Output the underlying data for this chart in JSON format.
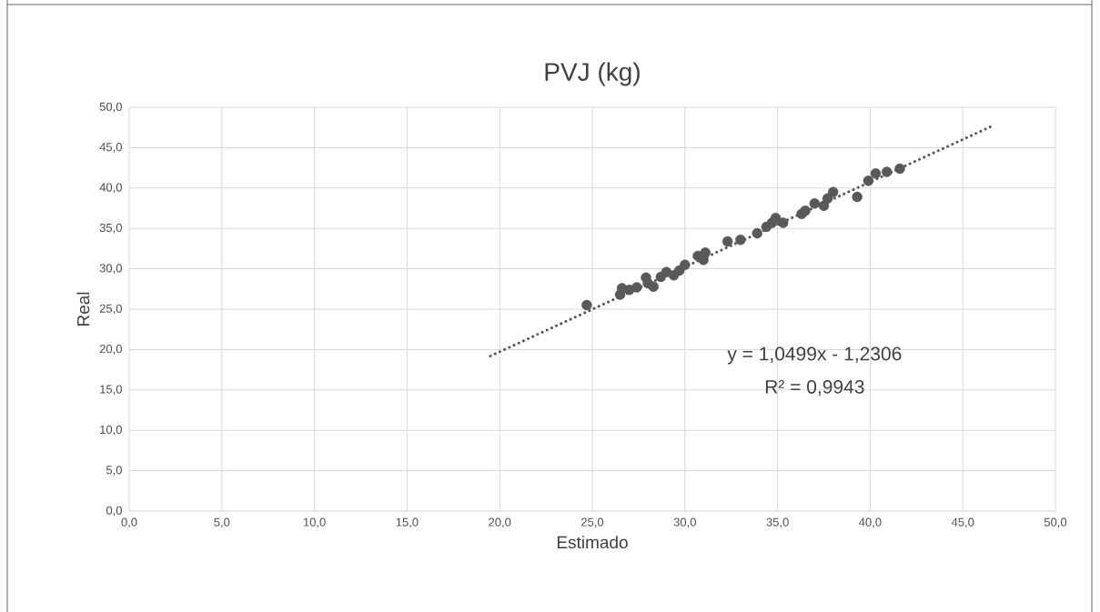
{
  "chart_data": {
    "type": "scatter",
    "title": "PVJ (kg)",
    "xlabel": "Estimado",
    "ylabel": "Real",
    "annotations": [
      "y = 1,0499x - 1,2306",
      "R² = 0,9943"
    ],
    "xlim": [
      0,
      50
    ],
    "ylim": [
      0,
      50
    ],
    "xticks": [
      {
        "value": 0,
        "label": "0,0"
      },
      {
        "value": 5,
        "label": "5,0"
      },
      {
        "value": 10,
        "label": "10,0"
      },
      {
        "value": 15,
        "label": "15,0"
      },
      {
        "value": 20,
        "label": "20,0"
      },
      {
        "value": 25,
        "label": "25,0"
      },
      {
        "value": 30,
        "label": "30,0"
      },
      {
        "value": 35,
        "label": "35,0"
      },
      {
        "value": 40,
        "label": "40,0"
      },
      {
        "value": 45,
        "label": "45,0"
      },
      {
        "value": 50,
        "label": "50,0"
      }
    ],
    "yticks": [
      {
        "value": 0,
        "label": "0,0"
      },
      {
        "value": 5,
        "label": "5,0"
      },
      {
        "value": 10,
        "label": "10,0"
      },
      {
        "value": 15,
        "label": "15,0"
      },
      {
        "value": 20,
        "label": "20,0"
      },
      {
        "value": 25,
        "label": "25,0"
      },
      {
        "value": 30,
        "label": "30,0"
      },
      {
        "value": 35,
        "label": "35,0"
      },
      {
        "value": 40,
        "label": "40,0"
      },
      {
        "value": 45,
        "label": "45,0"
      },
      {
        "value": 50,
        "label": "50,0"
      }
    ],
    "grid": true,
    "series": [
      {
        "color": "#595959",
        "marker": "circle",
        "x": [
          24.7,
          26.5,
          26.6,
          27.0,
          27.4,
          27.9,
          28.3,
          28.0,
          28.7,
          29.0,
          29.4,
          29.7,
          30.0,
          30.7,
          31.1,
          31.0,
          32.3,
          33.0,
          33.9,
          34.4,
          34.9,
          34.7,
          35.3,
          36.3,
          36.5,
          37.0,
          37.5,
          37.7,
          38.0,
          39.3,
          39.9,
          40.3,
          40.9,
          41.6
        ],
        "values": [
          25.5,
          26.8,
          27.6,
          27.4,
          27.7,
          28.9,
          27.8,
          28.2,
          29.0,
          29.6,
          29.2,
          29.8,
          30.5,
          31.6,
          32.0,
          31.1,
          33.4,
          33.6,
          34.4,
          35.2,
          36.3,
          35.7,
          35.7,
          36.8,
          37.2,
          38.1,
          37.8,
          38.7,
          39.5,
          38.9,
          40.9,
          41.8,
          42.0,
          42.4
        ]
      },
      {
        "type": "line",
        "color": "#595959",
        "line_style": "dotted",
        "marker": "none",
        "x": [
          19.5,
          46.6
        ],
        "values": [
          19.2,
          47.7
        ]
      }
    ]
  }
}
